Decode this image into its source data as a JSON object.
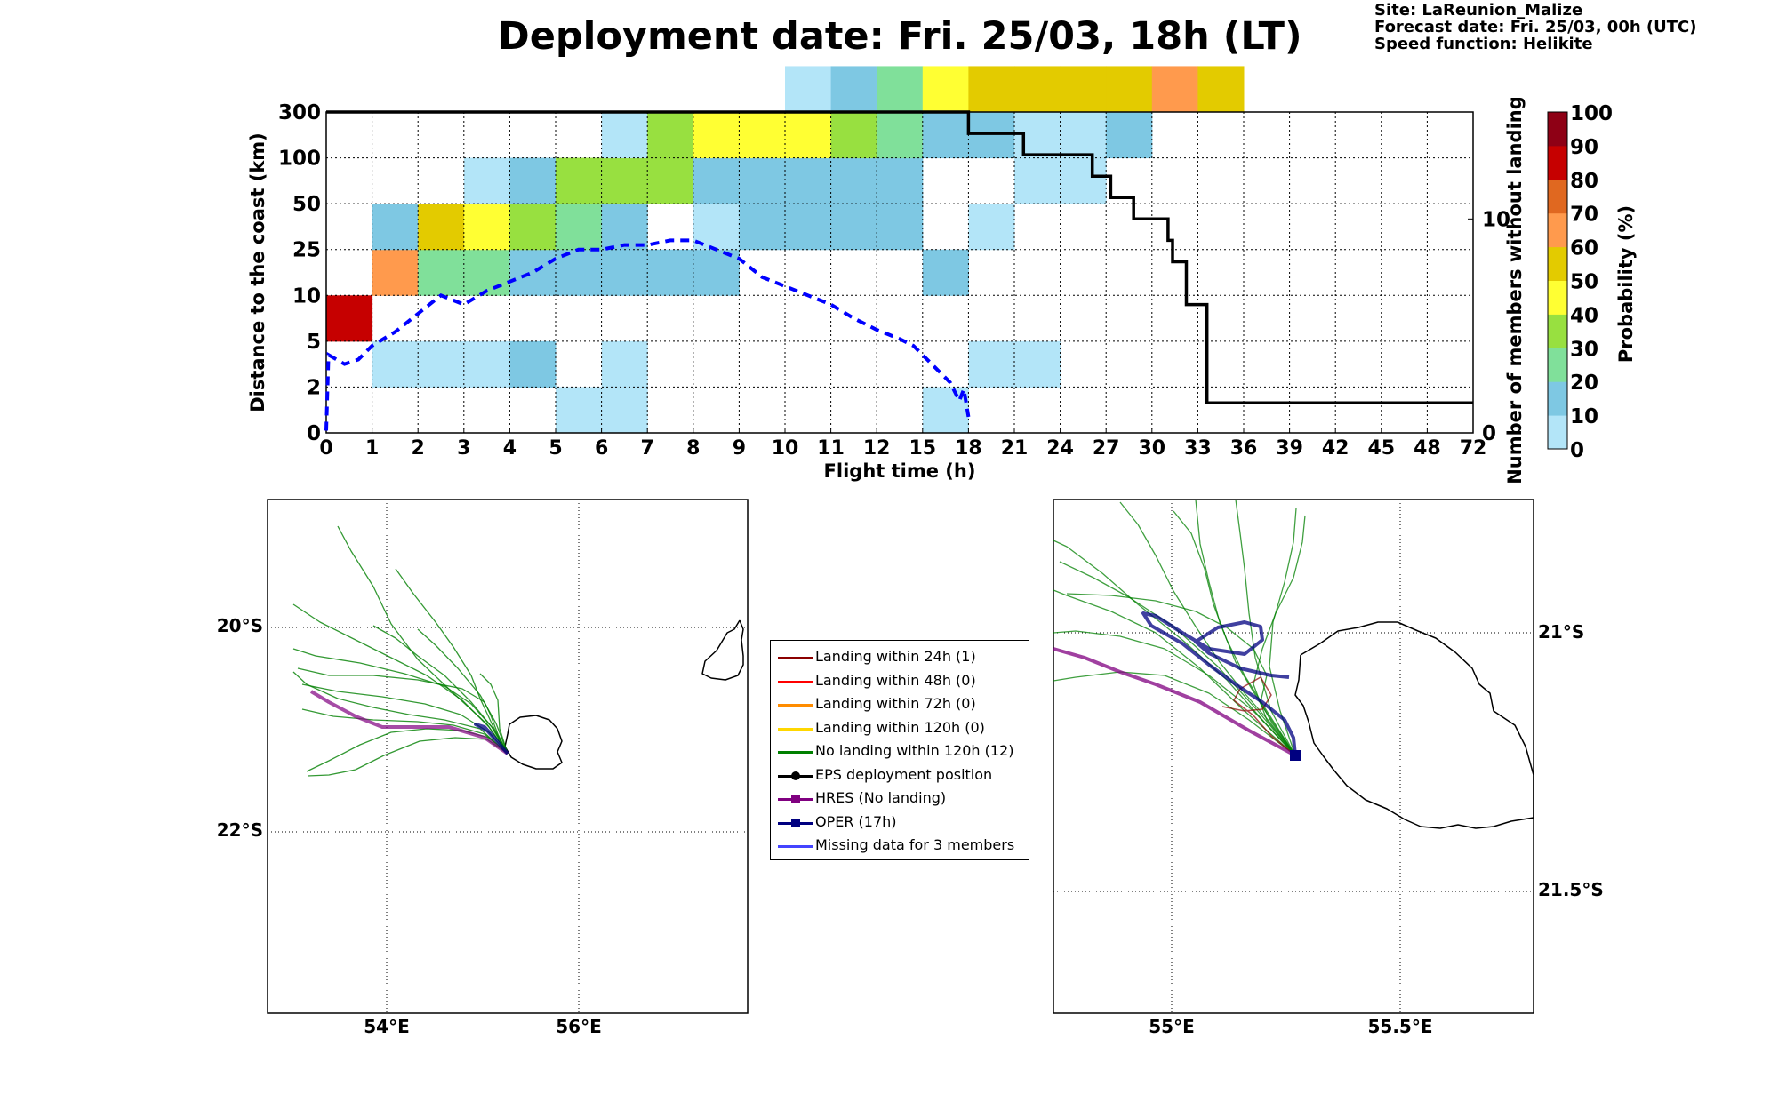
{
  "header": {
    "title": "Deployment date: Fri. 25/03, 18h (LT)",
    "site": "Site: LaReunion_Malize",
    "forecast_date": "Forecast date: Fri. 25/03, 00h (UTC)",
    "speed_function": "Speed function: Helikite"
  },
  "chart_data": [
    {
      "type": "heatmap",
      "xlabel": "Flight time (h)",
      "ylabel": "Distance to the coast (km)",
      "ylabel_right": "Number of members without landing",
      "x_ticks": [
        "0",
        "1",
        "2",
        "3",
        "4",
        "5",
        "6",
        "7",
        "8",
        "9",
        "10",
        "11",
        "12",
        "15",
        "18",
        "21",
        "24",
        "27",
        "30",
        "33",
        "36",
        "39",
        "42",
        "45",
        "48",
        "72"
      ],
      "y_ticks": [
        "0",
        "2",
        "5",
        "10",
        "25",
        "50",
        "100",
        "300"
      ],
      "y_right_ticks": [
        "0",
        "10"
      ],
      "y_right_range": [
        0,
        15
      ],
      "grid": true,
      "colorbar": {
        "label": "Probability (%)",
        "ticks": [
          "0",
          "10",
          "20",
          "30",
          "40",
          "50",
          "60",
          "70",
          "80",
          "90",
          "100"
        ],
        "colors": [
          "#b3e5f8",
          "#7ec8e3",
          "#80e09a",
          "#98e040",
          "#ffff33",
          "#e3cb00",
          "#ff9a4d",
          "#e06820",
          "#c60000",
          "#8e0015"
        ]
      },
      "cells": [
        {
          "x": 0,
          "y": 2,
          "p": 80
        },
        {
          "x": 1,
          "y": 1,
          "p": 5
        },
        {
          "x": 2,
          "y": 1,
          "p": 5
        },
        {
          "x": 3,
          "y": 1,
          "p": 5
        },
        {
          "x": 4,
          "y": 1,
          "p": 10
        },
        {
          "x": 6,
          "y": 1,
          "p": 5
        },
        {
          "x": 14,
          "y": 1,
          "p": 5
        },
        {
          "x": 15,
          "y": 1,
          "p": 5
        },
        {
          "x": 5,
          "y": 0,
          "p": 5
        },
        {
          "x": 6,
          "y": 0,
          "p": 5
        },
        {
          "x": 13,
          "y": 0,
          "p": 5
        },
        {
          "x": 1,
          "y": 3,
          "p": 60
        },
        {
          "x": 2,
          "y": 3,
          "p": 20
        },
        {
          "x": 3,
          "y": 3,
          "p": 20
        },
        {
          "x": 4,
          "y": 3,
          "p": 10
        },
        {
          "x": 5,
          "y": 3,
          "p": 10
        },
        {
          "x": 6,
          "y": 3,
          "p": 10
        },
        {
          "x": 7,
          "y": 3,
          "p": 10
        },
        {
          "x": 8,
          "y": 3,
          "p": 10
        },
        {
          "x": 13,
          "y": 3,
          "p": 10
        },
        {
          "x": 1,
          "y": 4,
          "p": 10
        },
        {
          "x": 2,
          "y": 4,
          "p": 50
        },
        {
          "x": 3,
          "y": 4,
          "p": 40
        },
        {
          "x": 4,
          "y": 4,
          "p": 30
        },
        {
          "x": 5,
          "y": 4,
          "p": 20
        },
        {
          "x": 6,
          "y": 4,
          "p": 10
        },
        {
          "x": 8,
          "y": 4,
          "p": 5
        },
        {
          "x": 9,
          "y": 4,
          "p": 10
        },
        {
          "x": 10,
          "y": 4,
          "p": 10
        },
        {
          "x": 11,
          "y": 4,
          "p": 10
        },
        {
          "x": 12,
          "y": 4,
          "p": 10
        },
        {
          "x": 14,
          "y": 4,
          "p": 5
        },
        {
          "x": 3,
          "y": 5,
          "p": 5
        },
        {
          "x": 4,
          "y": 5,
          "p": 10
        },
        {
          "x": 5,
          "y": 5,
          "p": 30
        },
        {
          "x": 6,
          "y": 5,
          "p": 30
        },
        {
          "x": 7,
          "y": 5,
          "p": 30
        },
        {
          "x": 8,
          "y": 5,
          "p": 10
        },
        {
          "x": 9,
          "y": 5,
          "p": 10
        },
        {
          "x": 10,
          "y": 5,
          "p": 10
        },
        {
          "x": 11,
          "y": 5,
          "p": 10
        },
        {
          "x": 12,
          "y": 5,
          "p": 10
        },
        {
          "x": 15,
          "y": 5,
          "p": 5
        },
        {
          "x": 16,
          "y": 5,
          "p": 5
        },
        {
          "x": 6,
          "y": 6,
          "p": 5
        },
        {
          "x": 7,
          "y": 6,
          "p": 30
        },
        {
          "x": 8,
          "y": 6,
          "p": 40
        },
        {
          "x": 9,
          "y": 6,
          "p": 40
        },
        {
          "x": 10,
          "y": 6,
          "p": 40
        },
        {
          "x": 11,
          "y": 6,
          "p": 30
        },
        {
          "x": 12,
          "y": 6,
          "p": 20
        },
        {
          "x": 13,
          "y": 6,
          "p": 10
        },
        {
          "x": 14,
          "y": 6,
          "p": 10
        },
        {
          "x": 15,
          "y": 6,
          "p": 5
        },
        {
          "x": 16,
          "y": 6,
          "p": 5
        },
        {
          "x": 17,
          "y": 6,
          "p": 10
        },
        {
          "x": 10,
          "y": 7,
          "p": 5
        },
        {
          "x": 11,
          "y": 7,
          "p": 10
        },
        {
          "x": 12,
          "y": 7,
          "p": 20
        },
        {
          "x": 13,
          "y": 7,
          "p": 40
        },
        {
          "x": 14,
          "y": 7,
          "p": 50
        },
        {
          "x": 15,
          "y": 7,
          "p": 50
        },
        {
          "x": 16,
          "y": 7,
          "p": 50
        },
        {
          "x": 17,
          "y": 7,
          "p": 50
        },
        {
          "x": 18,
          "y": 7,
          "p": 60
        },
        {
          "x": 19,
          "y": 7,
          "p": 50
        }
      ],
      "members_without_landing": {
        "x_index": [
          0,
          14,
          14,
          15.2,
          15.2,
          16.7,
          16.7,
          17.1,
          17.1,
          17.6,
          17.6,
          18.35,
          18.35,
          18.45,
          18.45,
          18.75,
          18.75,
          19.2,
          19.2,
          25
        ],
        "values": [
          15,
          15,
          14,
          14,
          13,
          13,
          12,
          12,
          11,
          11,
          10,
          10,
          9,
          9,
          8,
          8,
          6,
          6,
          1.4,
          1.4
        ]
      },
      "mean_distance_line": {
        "style": "dashed",
        "color": "#0000ff",
        "x_index": [
          0,
          0.05,
          0.4,
          0.7,
          1,
          1.5,
          2,
          2.5,
          3,
          3.5,
          4,
          4.5,
          5,
          5.5,
          6,
          6.5,
          7,
          7.5,
          8,
          8.5,
          9,
          9.5,
          10,
          10.5,
          11,
          11.5,
          12,
          12.5,
          12.8,
          13.2,
          13.6,
          13.8,
          13.9,
          14
        ],
        "y_index": [
          0.05,
          1.7,
          1.5,
          1.6,
          1.9,
          2.2,
          2.6,
          3.0,
          2.8,
          3.1,
          3.3,
          3.5,
          3.8,
          4.0,
          4.0,
          4.1,
          4.1,
          4.2,
          4.2,
          4.0,
          3.8,
          3.4,
          3.2,
          3.0,
          2.8,
          2.5,
          2.25,
          2.05,
          1.9,
          1.5,
          1.1,
          0.7,
          0.95,
          0.35
        ]
      }
    }
  ],
  "maps": {
    "left": {
      "lat_labels": [
        "20°S",
        "22°S"
      ],
      "lon_labels": [
        "54°E",
        "56°E"
      ]
    },
    "right": {
      "lat_labels": [
        "21°S",
        "21.5°S"
      ],
      "lon_labels": [
        "55°E",
        "55.5°E"
      ]
    }
  },
  "legend": {
    "items": [
      {
        "label": "Landing within 24h (1)",
        "color": "#8b0000",
        "marker": "none"
      },
      {
        "label": "Landing within 48h (0)",
        "color": "#ff0000",
        "marker": "none"
      },
      {
        "label": "Landing within 72h (0)",
        "color": "#ff8c00",
        "marker": "none"
      },
      {
        "label": "Landing within 120h (0)",
        "color": "#ffd700",
        "marker": "none"
      },
      {
        "label": "No landing within 120h (12)",
        "color": "#008000",
        "marker": "none"
      },
      {
        "label": "EPS deployment position",
        "color": "#000000",
        "marker": "circle"
      },
      {
        "label": "HRES (No landing)",
        "color": "#800080",
        "marker": "square"
      },
      {
        "label": "OPER (17h)",
        "color": "#000080",
        "marker": "square"
      },
      {
        "label": "Missing data for 3 members",
        "color": "#4444ff",
        "marker": "none"
      }
    ]
  }
}
